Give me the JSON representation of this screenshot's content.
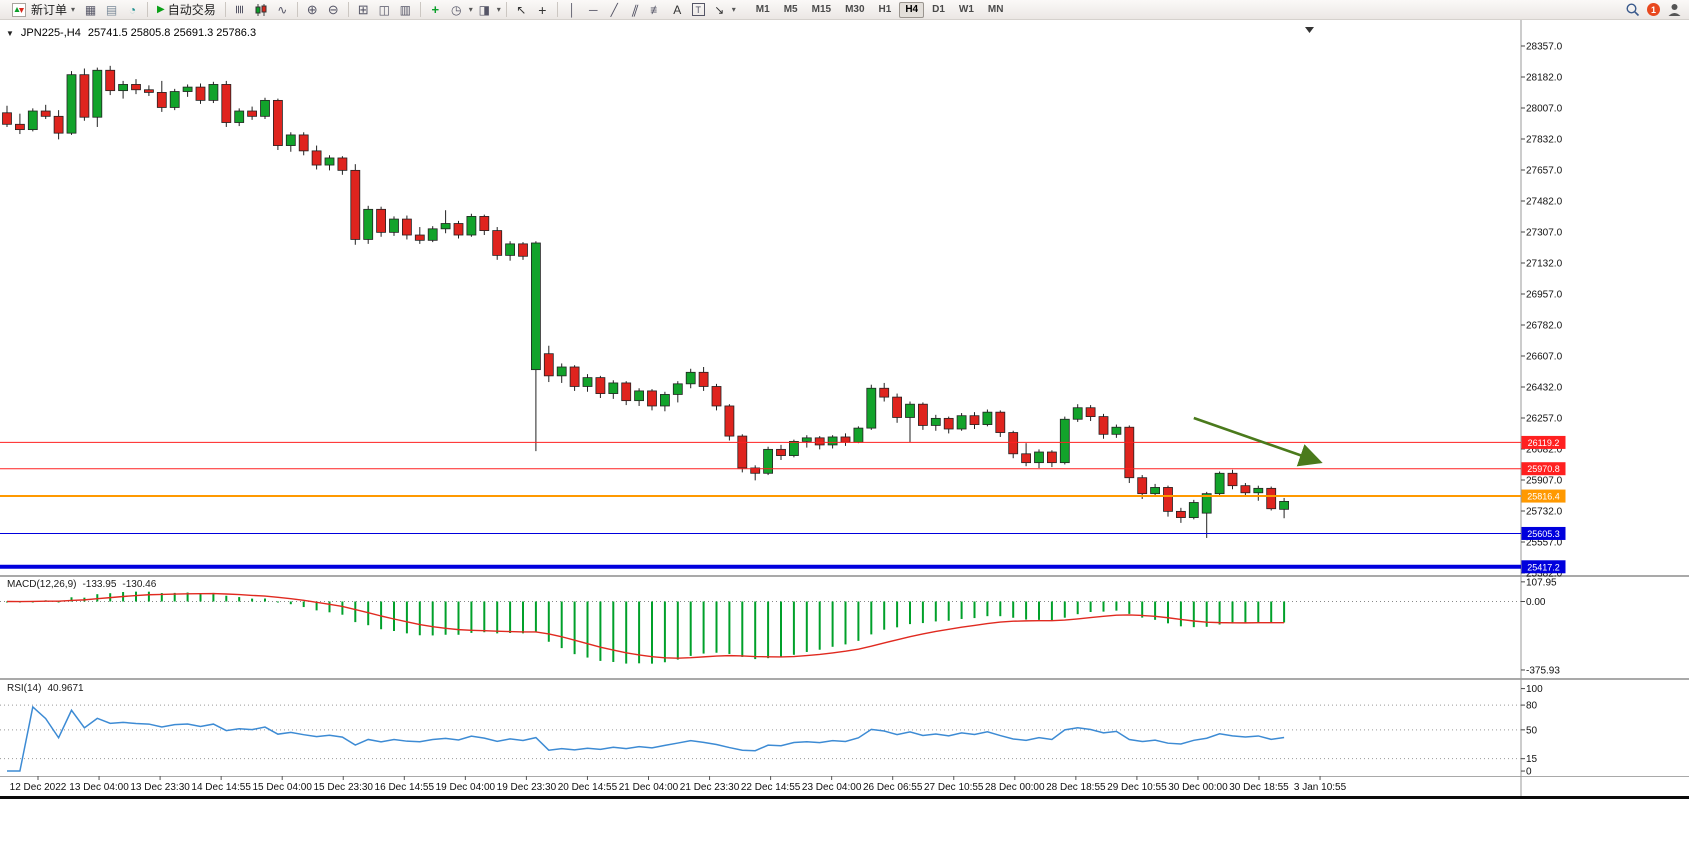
{
  "toolbar": {
    "new_order_label": "新订单",
    "autotrading_label": "自动交易",
    "timeframes": [
      "M1",
      "M5",
      "M15",
      "M30",
      "H1",
      "H4",
      "D1",
      "W1",
      "MN"
    ],
    "active_timeframe": "H4",
    "notification_count": "1"
  },
  "icons": {
    "symbol_dropdown": "▼",
    "caret": "▾",
    "charts": "▦",
    "profiles": "▤",
    "community": "◔",
    "autoplay": "▶",
    "bars_chart": "≣",
    "line_chart": "∿",
    "zoom_in": "⊕",
    "zoom_out": "⊖",
    "tile_windows": "⊞",
    "cascade_windows": "◫",
    "arrange_windows": "▥",
    "indicators": "+",
    "periods": "◷",
    "templates": "◨",
    "cursor": "↖",
    "crosshair": "+",
    "vline": "│",
    "hline": "─",
    "trendline": "╱",
    "channel": "∥",
    "fibonacci": "≢",
    "text_tool": "A",
    "label_tool": "T",
    "arrows_tool": "↘"
  },
  "chart": {
    "symbol_period": "JPN225-,H4",
    "ohlc_text": "25741.5 25805.8 25691.3 25786.3"
  },
  "colors": {
    "bull": "#12a32b",
    "bear": "#df241e",
    "wick": "#222222",
    "outline": "#222222",
    "background": "#ffffff"
  },
  "chart_data": {
    "type": "candlestick",
    "symbol": "JPN225-",
    "timeframe": "H4",
    "current_ohlc": {
      "open": 25741.5,
      "high": 25805.8,
      "low": 25691.3,
      "close": 25786.3
    },
    "price_axis": {
      "labels": [
        "28357.0",
        "28182.0",
        "28007.0",
        "27832.0",
        "27657.0",
        "27482.0",
        "27307.0",
        "27132.0",
        "26957.0",
        "26782.0",
        "26607.0",
        "26432.0",
        "26257.0",
        "26082.0",
        "25907.0",
        "25732.0",
        "25557.0",
        "25382.0"
      ]
    },
    "candles": [
      [
        27980,
        28020,
        27900,
        27915
      ],
      [
        27915,
        27975,
        27860,
        27885
      ],
      [
        27885,
        28005,
        27875,
        27990
      ],
      [
        27990,
        28025,
        27945,
        27960
      ],
      [
        27960,
        27995,
        27830,
        27865
      ],
      [
        27865,
        28215,
        27855,
        28195
      ],
      [
        28195,
        28230,
        27935,
        27955
      ],
      [
        27955,
        28235,
        27900,
        28220
      ],
      [
        28220,
        28245,
        28080,
        28105
      ],
      [
        28105,
        28160,
        28060,
        28140
      ],
      [
        28140,
        28170,
        28085,
        28110
      ],
      [
        28110,
        28135,
        28075,
        28095
      ],
      [
        28095,
        28160,
        27985,
        28010
      ],
      [
        28010,
        28115,
        27995,
        28100
      ],
      [
        28100,
        28140,
        28070,
        28125
      ],
      [
        28125,
        28145,
        28030,
        28050
      ],
      [
        28050,
        28155,
        28035,
        28140
      ],
      [
        28140,
        28160,
        27900,
        27925
      ],
      [
        27925,
        28005,
        27905,
        27990
      ],
      [
        27990,
        28015,
        27940,
        27960
      ],
      [
        27960,
        28065,
        27945,
        28050
      ],
      [
        28050,
        28060,
        27770,
        27795
      ],
      [
        27795,
        27870,
        27760,
        27855
      ],
      [
        27855,
        27870,
        27740,
        27765
      ],
      [
        27765,
        27795,
        27660,
        27685
      ],
      [
        27685,
        27740,
        27655,
        27725
      ],
      [
        27725,
        27735,
        27630,
        27655
      ],
      [
        27655,
        27690,
        27235,
        27265
      ],
      [
        27265,
        27455,
        27240,
        27435
      ],
      [
        27435,
        27450,
        27280,
        27305
      ],
      [
        27305,
        27395,
        27285,
        27380
      ],
      [
        27380,
        27400,
        27265,
        27290
      ],
      [
        27290,
        27335,
        27240,
        27260
      ],
      [
        27260,
        27340,
        27250,
        27325
      ],
      [
        27325,
        27430,
        27300,
        27355
      ],
      [
        27355,
        27370,
        27270,
        27290
      ],
      [
        27290,
        27410,
        27280,
        27395
      ],
      [
        27395,
        27405,
        27290,
        27315
      ],
      [
        27315,
        27335,
        27150,
        27175
      ],
      [
        27175,
        27255,
        27145,
        27240
      ],
      [
        27240,
        27250,
        27150,
        27170
      ],
      [
        26530,
        27255,
        26070,
        27245
      ],
      [
        26620,
        26665,
        26460,
        26495
      ],
      [
        26495,
        26565,
        26455,
        26545
      ],
      [
        26545,
        26555,
        26410,
        26435
      ],
      [
        26435,
        26505,
        26405,
        26485
      ],
      [
        26485,
        26495,
        26370,
        26395
      ],
      [
        26395,
        26470,
        26365,
        26455
      ],
      [
        26455,
        26465,
        26330,
        26355
      ],
      [
        26355,
        26425,
        26325,
        26410
      ],
      [
        26410,
        26420,
        26300,
        26325
      ],
      [
        26325,
        26405,
        26295,
        26390
      ],
      [
        26390,
        26465,
        26345,
        26450
      ],
      [
        26450,
        26535,
        26425,
        26515
      ],
      [
        26515,
        26545,
        26410,
        26435
      ],
      [
        26435,
        26450,
        26300,
        26325
      ],
      [
        26325,
        26335,
        26130,
        26155
      ],
      [
        26155,
        26165,
        25950,
        25975
      ],
      [
        25975,
        25990,
        25905,
        25945
      ],
      [
        25945,
        26095,
        25935,
        26080
      ],
      [
        26080,
        26105,
        26020,
        26045
      ],
      [
        26045,
        26135,
        26035,
        26125
      ],
      [
        26125,
        26160,
        26090,
        26145
      ],
      [
        26145,
        26155,
        26080,
        26105
      ],
      [
        26105,
        26160,
        26085,
        26150
      ],
      [
        26150,
        26170,
        26100,
        26120
      ],
      [
        26120,
        26210,
        26115,
        26200
      ],
      [
        26200,
        26445,
        26190,
        26425
      ],
      [
        26425,
        26455,
        26350,
        26375
      ],
      [
        26375,
        26395,
        26230,
        26260
      ],
      [
        26260,
        26350,
        26120,
        26335
      ],
      [
        26335,
        26345,
        26190,
        26215
      ],
      [
        26215,
        26275,
        26185,
        26255
      ],
      [
        26255,
        26265,
        26170,
        26195
      ],
      [
        26195,
        26285,
        26185,
        26270
      ],
      [
        26270,
        26290,
        26195,
        26220
      ],
      [
        26220,
        26305,
        26210,
        26290
      ],
      [
        26290,
        26300,
        26150,
        26175
      ],
      [
        26175,
        26185,
        26030,
        26055
      ],
      [
        26055,
        26115,
        25985,
        26005
      ],
      [
        26005,
        26080,
        25975,
        26065
      ],
      [
        26065,
        26075,
        25980,
        26005
      ],
      [
        26005,
        26265,
        25995,
        26250
      ],
      [
        26250,
        26335,
        26235,
        26315
      ],
      [
        26315,
        26330,
        26240,
        26265
      ],
      [
        26265,
        26280,
        26140,
        26165
      ],
      [
        26165,
        26220,
        26145,
        26205
      ],
      [
        26205,
        26215,
        25890,
        25920
      ],
      [
        25920,
        25935,
        25800,
        25830
      ],
      [
        25830,
        25885,
        25815,
        25865
      ],
      [
        25865,
        25875,
        25700,
        25730
      ],
      [
        25730,
        25750,
        25665,
        25695
      ],
      [
        25695,
        25795,
        25685,
        25780
      ],
      [
        25720,
        25840,
        25580,
        25830
      ],
      [
        25830,
        25955,
        25820,
        25945
      ],
      [
        25945,
        25965,
        25855,
        25875
      ],
      [
        25875,
        25890,
        25815,
        25835
      ],
      [
        25835,
        25875,
        25790,
        25860
      ],
      [
        25860,
        25870,
        25735,
        25745
      ],
      [
        25741.5,
        25805.8,
        25691.3,
        25786.3
      ]
    ],
    "hlines": [
      {
        "price": 26119.2,
        "label": "26119.2",
        "color": "#ff2020",
        "thickness": 1
      },
      {
        "price": 25970.8,
        "label": "25970.8",
        "color": "#ff2020",
        "thickness": 1
      },
      {
        "price": 25816.4,
        "label": "25816.4",
        "color": "#ff9900",
        "thickness": 2
      },
      {
        "price": 25605.3,
        "label": "25605.3",
        "color": "#0000dd",
        "thickness": 1
      },
      {
        "price": 25417.2,
        "label": "25417.2",
        "color": "#0000dd",
        "thickness": 4
      }
    ],
    "arrow_annotation": {
      "from_candle": 92,
      "from_price": 26257,
      "to_candle": 101.8,
      "to_price": 26008,
      "color": "#4a7a1c"
    },
    "indicators": {
      "macd": {
        "label": "MACD(12,26,9)",
        "value_main": "-133.95",
        "value_signal": "-130.46",
        "axis": [
          {
            "v": 107.95,
            "t": "107.95"
          },
          {
            "v": 0,
            "t": "0.00"
          },
          {
            "v": -375.93,
            "t": "-375.93"
          }
        ],
        "ylim": [
          -420,
          140
        ],
        "histogram_color": "#00a02a",
        "signal_color": "#e02a20"
      },
      "rsi": {
        "label": "RSI(14)",
        "value": "40.9671",
        "axis": [
          {
            "v": 100,
            "t": "100"
          },
          {
            "v": 80,
            "t": "80"
          },
          {
            "v": 50,
            "t": "50"
          },
          {
            "v": 15,
            "t": "15"
          },
          {
            "v": 0,
            "t": "0"
          }
        ],
        "levels": [
          80,
          50,
          15
        ],
        "ylim": [
          -6,
          108
        ],
        "line_color": "#3d8bd4"
      }
    },
    "time_axis": {
      "labels": [
        "12 Dec 2022",
        "13 Dec 04:00",
        "13 Dec 23:30",
        "14 Dec 14:55",
        "15 Dec 04:00",
        "15 Dec 23:30",
        "16 Dec 14:55",
        "19 Dec 04:00",
        "19 Dec 23:30",
        "20 Dec 14:55",
        "21 Dec 04:00",
        "21 Dec 23:30",
        "22 Dec 14:55",
        "23 Dec 04:00",
        "26 Dec 06:55",
        "27 Dec 10:55",
        "28 Dec 00:00",
        "28 Dec 18:55",
        "29 Dec 10:55",
        "30 Dec 00:00",
        "30 Dec 18:55",
        "3 Jan 10:55"
      ]
    }
  }
}
